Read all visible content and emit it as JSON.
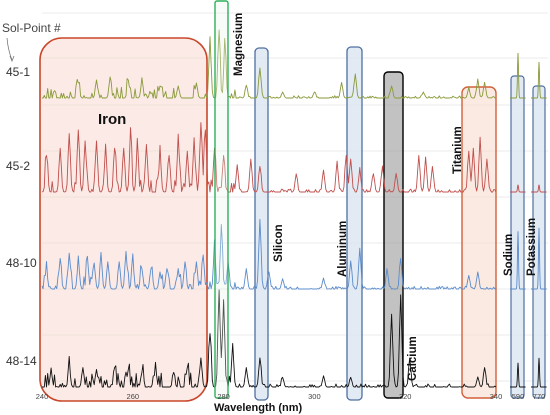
{
  "chart_data": {
    "type": "line",
    "ylabel": "Sol-Point #",
    "xlabel": "Wavelength (nm)",
    "grid": true,
    "x_segments": [
      {
        "range": [
          240,
          340
        ],
        "ticks": [
          "240",
          "260",
          "280",
          "300",
          "320",
          "340"
        ]
      },
      {
        "range": [
          588,
          592
        ],
        "ticks": [
          "590"
        ]
      },
      {
        "range": [
          768,
          772
        ],
        "ticks": [
          "770"
        ]
      }
    ],
    "series": [
      {
        "name": "45-1",
        "color": "#8a9a3b"
      },
      {
        "name": "45-2",
        "color": "#c0504d"
      },
      {
        "name": "48-10",
        "color": "#5b8ccc"
      },
      {
        "name": "48-14",
        "color": "#111111"
      }
    ],
    "peaks": {
      "45-1": [
        [
          248,
          0.25
        ],
        [
          252,
          0.3
        ],
        [
          255,
          0.35
        ],
        [
          259,
          0.3
        ],
        [
          262,
          0.25
        ],
        [
          266,
          0.2
        ],
        [
          270,
          0.2
        ],
        [
          274,
          0.25
        ],
        [
          277,
          0.9
        ],
        [
          279,
          1.0
        ],
        [
          280.3,
          0.95
        ],
        [
          285,
          0.2
        ],
        [
          288,
          0.5
        ],
        [
          293,
          0.1
        ],
        [
          300,
          0.1
        ],
        [
          306,
          0.25
        ],
        [
          309,
          0.4
        ],
        [
          317,
          0.2
        ],
        [
          324,
          0.1
        ],
        [
          334,
          0.15
        ],
        [
          336,
          0.3
        ],
        [
          337.5,
          0.25
        ],
        [
          590,
          0.75
        ],
        [
          770,
          0.6
        ]
      ],
      "45-2": [
        [
          241,
          0.5
        ],
        [
          244,
          0.6
        ],
        [
          246,
          0.8
        ],
        [
          248,
          0.85
        ],
        [
          249.5,
          0.7
        ],
        [
          252,
          0.7
        ],
        [
          254,
          0.55
        ],
        [
          256,
          0.6
        ],
        [
          258,
          0.6
        ],
        [
          259.5,
          0.75
        ],
        [
          261,
          0.6
        ],
        [
          263,
          0.65
        ],
        [
          266,
          0.5
        ],
        [
          268,
          0.5
        ],
        [
          270,
          0.65
        ],
        [
          272,
          0.55
        ],
        [
          273.5,
          0.7
        ],
        [
          275,
          0.95
        ],
        [
          276,
          0.85
        ],
        [
          278,
          0.6
        ],
        [
          280,
          0.5
        ],
        [
          283,
          0.35
        ],
        [
          286,
          0.45
        ],
        [
          288,
          0.35
        ],
        [
          296,
          0.25
        ],
        [
          302,
          0.3
        ],
        [
          305,
          0.4
        ],
        [
          307,
          0.5
        ],
        [
          308,
          0.45
        ],
        [
          310,
          0.3
        ],
        [
          313,
          0.25
        ],
        [
          315,
          0.35
        ],
        [
          318,
          0.25
        ],
        [
          323,
          0.5
        ],
        [
          324.5,
          0.45
        ],
        [
          326,
          0.35
        ],
        [
          334,
          0.55
        ],
        [
          335,
          0.6
        ],
        [
          336.5,
          0.75
        ],
        [
          338,
          0.45
        ],
        [
          590,
          0.1
        ],
        [
          770,
          0.1
        ]
      ],
      "48-10": [
        [
          241,
          0.25
        ],
        [
          244,
          0.45
        ],
        [
          246,
          0.5
        ],
        [
          248,
          0.4
        ],
        [
          250,
          0.45
        ],
        [
          251.5,
          0.35
        ],
        [
          253,
          0.45
        ],
        [
          254.5,
          0.4
        ],
        [
          257,
          0.4
        ],
        [
          258.5,
          0.55
        ],
        [
          260,
          0.4
        ],
        [
          262,
          0.3
        ],
        [
          264,
          0.3
        ],
        [
          266,
          0.25
        ],
        [
          267.5,
          0.3
        ],
        [
          270,
          0.3
        ],
        [
          271.5,
          0.4
        ],
        [
          274,
          0.4
        ],
        [
          275.5,
          0.5
        ],
        [
          278,
          0.6
        ],
        [
          279.5,
          0.85
        ],
        [
          281,
          0.4
        ],
        [
          285,
          0.3
        ],
        [
          288,
          1.0
        ],
        [
          290,
          0.25
        ],
        [
          293,
          0.15
        ],
        [
          302,
          0.15
        ],
        [
          308,
          0.4
        ],
        [
          310,
          0.6
        ],
        [
          316,
          0.3
        ],
        [
          319,
          0.45
        ],
        [
          334,
          0.2
        ],
        [
          336,
          0.25
        ],
        [
          590,
          0.85
        ],
        [
          770,
          0.9
        ]
      ],
      "48-14": [
        [
          242,
          0.15
        ],
        [
          246,
          0.2
        ],
        [
          249,
          0.2
        ],
        [
          252,
          0.18
        ],
        [
          256,
          0.2
        ],
        [
          259,
          0.18
        ],
        [
          262,
          0.15
        ],
        [
          265,
          0.2
        ],
        [
          269,
          0.15
        ],
        [
          272,
          0.2
        ],
        [
          275,
          0.3
        ],
        [
          277,
          0.55
        ],
        [
          279,
          1.0
        ],
        [
          280,
          0.9
        ],
        [
          282,
          0.4
        ],
        [
          285,
          0.2
        ],
        [
          288,
          0.3
        ],
        [
          293,
          0.1
        ],
        [
          302,
          0.1
        ],
        [
          308,
          0.1
        ],
        [
          317,
          0.75
        ],
        [
          319,
          0.95
        ],
        [
          321,
          0.3
        ],
        [
          336,
          0.1
        ],
        [
          337.5,
          0.2
        ],
        [
          590,
          0.25
        ],
        [
          770,
          0.3
        ]
      ]
    },
    "annotations": {
      "iron": "Iron",
      "magnesium": "Magnesium",
      "silicon": "Silicon",
      "aluminum": "Aluminum",
      "calcium": "Calcium",
      "titanium": "Titanium",
      "sodium": "Sodium",
      "potassium": "Potassium"
    },
    "highlight_colors": {
      "iron": "#c0504d",
      "magnesium": "#2db05a",
      "blue": "#4f6fa0",
      "calcium": "#000000",
      "titanium": "#d2603a"
    }
  }
}
